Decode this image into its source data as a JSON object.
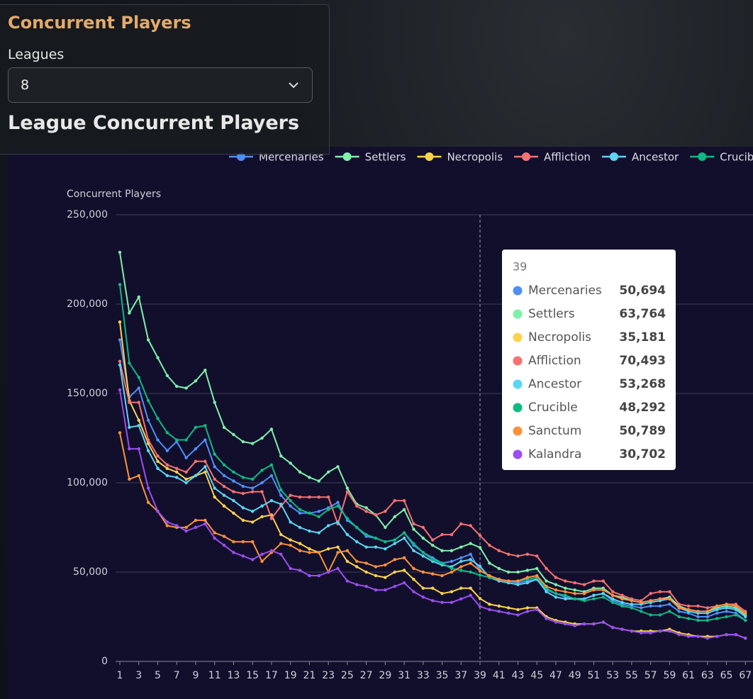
{
  "header": {
    "title": "Concurrent Players",
    "filter_label": "Leagues",
    "filter_value": "8",
    "section_title": "League Concurrent Players"
  },
  "chart_data": {
    "type": "line",
    "y_label": "Concurrent Players",
    "x": [
      1,
      2,
      3,
      4,
      5,
      6,
      7,
      8,
      9,
      10,
      11,
      12,
      13,
      14,
      15,
      16,
      17,
      18,
      19,
      20,
      21,
      22,
      23,
      24,
      25,
      26,
      27,
      28,
      29,
      30,
      31,
      32,
      33,
      34,
      35,
      36,
      37,
      38,
      39,
      40,
      41,
      42,
      43,
      44,
      45,
      46,
      47,
      48,
      49,
      50,
      51,
      52,
      53,
      54,
      55,
      56,
      57,
      58,
      59,
      60,
      61,
      62,
      63,
      64,
      65,
      66,
      67
    ],
    "xlim": [
      0.55,
      67.8
    ],
    "xticks": [
      1,
      3,
      5,
      7,
      9,
      11,
      13,
      15,
      17,
      19,
      21,
      23,
      25,
      27,
      29,
      31,
      33,
      35,
      37,
      39,
      41,
      43,
      45,
      47,
      49,
      51,
      53,
      55,
      57,
      59,
      61,
      63,
      65,
      67
    ],
    "ylim": [
      0,
      250000
    ],
    "yticks": [
      0,
      {
        "value": 50000,
        "label": "50,000"
      },
      {
        "value": 100000,
        "label": "100,000"
      },
      {
        "value": 150000,
        "label": "150,000"
      },
      {
        "value": 200000,
        "label": "200,000"
      },
      {
        "value": 250000,
        "label": "250,000"
      }
    ],
    "grid": true,
    "legend": "top-right",
    "series": [
      {
        "name": "Mercenaries",
        "color": "#4f8ff7",
        "values": [
          180000,
          148000,
          153000,
          135000,
          124000,
          118000,
          123000,
          114000,
          119000,
          124000,
          109000,
          104000,
          101000,
          98000,
          97000,
          100000,
          104000,
          93000,
          87000,
          83000,
          83000,
          84000,
          86000,
          89000,
          79000,
          75000,
          70000,
          69000,
          67000,
          68000,
          72000,
          65000,
          61000,
          58000,
          55000,
          56000,
          58000,
          60000,
          50694,
          48000,
          46000,
          45000,
          44000,
          45000,
          46000,
          40000,
          38000,
          36000,
          35000,
          35000,
          37000,
          38000,
          34000,
          32000,
          31000,
          30000,
          31000,
          31000,
          32000,
          28000,
          27000,
          25000,
          25000,
          27000,
          28000,
          27000,
          23000
        ]
      },
      {
        "name": "Settlers",
        "color": "#7ef0a8",
        "values": [
          229000,
          195000,
          204000,
          180000,
          170000,
          160000,
          154000,
          153000,
          157000,
          163000,
          145000,
          131000,
          127000,
          123000,
          122000,
          125000,
          130000,
          115000,
          111000,
          106000,
          103000,
          101000,
          106000,
          109000,
          97000,
          88000,
          86000,
          82000,
          75000,
          81000,
          85000,
          74000,
          69000,
          65000,
          62000,
          62000,
          64000,
          66000,
          63764,
          55000,
          52000,
          50000,
          50000,
          51000,
          52000,
          45000,
          43000,
          41000,
          40000,
          39000,
          41000,
          41000,
          37000,
          36000,
          34000,
          33000,
          34000,
          35000,
          36000,
          31000,
          29000,
          28000,
          28000,
          30000,
          31000,
          30000,
          26000
        ]
      },
      {
        "name": "Necropolis",
        "color": "#fcd34d",
        "values": [
          190000,
          146000,
          135000,
          122000,
          112000,
          108000,
          106000,
          102000,
          104000,
          106000,
          92000,
          87000,
          83000,
          79000,
          78000,
          81000,
          82000,
          71000,
          68000,
          66000,
          63000,
          61000,
          63000,
          64000,
          56000,
          53000,
          50000,
          48000,
          47000,
          50000,
          51000,
          46000,
          41000,
          41000,
          38000,
          39000,
          41000,
          41000,
          35181,
          32000,
          31000,
          30000,
          29000,
          30000,
          30000,
          25000,
          23000,
          22000,
          21000,
          21000,
          21000,
          22000,
          19000,
          18000,
          17000,
          17000,
          17000,
          17000,
          18000,
          16000,
          15000,
          14000,
          14000,
          14000,
          15000,
          15000,
          13000
        ]
      },
      {
        "name": "Affliction",
        "color": "#f87171",
        "values": [
          168000,
          145000,
          145000,
          124000,
          115000,
          110000,
          108000,
          106000,
          112000,
          112000,
          102000,
          98000,
          95000,
          94000,
          95000,
          95000,
          80000,
          87000,
          93000,
          92000,
          92000,
          92000,
          92000,
          77000,
          95000,
          87000,
          84000,
          82000,
          84000,
          90000,
          90000,
          77000,
          75000,
          68000,
          71000,
          71000,
          77000,
          76000,
          70493,
          65000,
          62000,
          60000,
          59000,
          60000,
          59000,
          52000,
          47000,
          45000,
          44000,
          43000,
          45000,
          45000,
          39000,
          37000,
          35000,
          34000,
          38000,
          39000,
          39000,
          32000,
          31000,
          31000,
          30000,
          31000,
          32000,
          32000,
          28000
        ]
      },
      {
        "name": "Ancestor",
        "color": "#5ad6f2",
        "values": [
          166000,
          131000,
          132000,
          118000,
          108000,
          104000,
          103000,
          100000,
          104000,
          109000,
          97000,
          93000,
          90000,
          86000,
          84000,
          87000,
          90000,
          88000,
          78000,
          75000,
          73000,
          72000,
          76000,
          78000,
          71000,
          67000,
          64000,
          64000,
          63000,
          66000,
          69000,
          62000,
          59000,
          56000,
          54000,
          53000,
          56000,
          57000,
          53268,
          47000,
          45000,
          44000,
          43000,
          44000,
          46000,
          39000,
          36000,
          35000,
          35000,
          35000,
          37000,
          38000,
          35000,
          33000,
          32000,
          32000,
          33000,
          34000,
          35000,
          30000,
          28000,
          27000,
          27000,
          29000,
          30000,
          29000,
          25000
        ]
      },
      {
        "name": "Crucible",
        "color": "#10b981",
        "values": [
          211000,
          167000,
          159000,
          146000,
          136000,
          128000,
          124000,
          124000,
          131000,
          132000,
          116000,
          110000,
          106000,
          103000,
          102000,
          107000,
          110000,
          96000,
          90000,
          85000,
          83000,
          81000,
          85000,
          87000,
          80000,
          75000,
          71000,
          69000,
          67000,
          68000,
          72000,
          66000,
          61000,
          57000,
          55000,
          52000,
          51000,
          50000,
          48292,
          47000,
          46000,
          45000,
          45000,
          46000,
          47000,
          41000,
          38000,
          37000,
          35000,
          34000,
          35000,
          36000,
          33000,
          31000,
          30000,
          28000,
          26000,
          26000,
          28000,
          25000,
          24000,
          23000,
          23000,
          24000,
          25000,
          26000,
          23000
        ]
      },
      {
        "name": "Sanctum",
        "color": "#fb923c",
        "values": [
          128000,
          102000,
          104000,
          89000,
          84000,
          76000,
          75000,
          75000,
          79000,
          79000,
          72000,
          70000,
          67000,
          67000,
          67000,
          56000,
          61000,
          66000,
          65000,
          62000,
          61000,
          61000,
          50000,
          61000,
          62000,
          56000,
          55000,
          53000,
          54000,
          57000,
          58000,
          52000,
          50000,
          49000,
          48000,
          50000,
          53000,
          55000,
          50789,
          48000,
          46000,
          45000,
          45000,
          47000,
          48000,
          42000,
          40000,
          39000,
          38000,
          38000,
          40000,
          40000,
          37000,
          35000,
          34000,
          33000,
          34000,
          35000,
          35000,
          30000,
          29000,
          28000,
          28000,
          31000,
          32000,
          31000,
          27000
        ]
      },
      {
        "name": "Kalandra",
        "color": "#9b4ff0",
        "values": [
          152000,
          119000,
          119000,
          97000,
          84000,
          78000,
          76000,
          73000,
          75000,
          77000,
          69000,
          65000,
          61000,
          59000,
          57000,
          60000,
          62000,
          60000,
          52000,
          51000,
          48000,
          48000,
          50000,
          52000,
          45000,
          43000,
          42000,
          40000,
          40000,
          42000,
          44000,
          39000,
          36000,
          34000,
          33000,
          33000,
          35000,
          37000,
          30702,
          29000,
          28000,
          27000,
          26000,
          28000,
          29000,
          24000,
          22000,
          21000,
          20000,
          21000,
          21000,
          22000,
          19000,
          18000,
          17000,
          16000,
          16000,
          17000,
          17000,
          15000,
          14000,
          14000,
          13000,
          14000,
          15000,
          15000,
          13000
        ]
      }
    ],
    "tooltip": {
      "x": 39,
      "value_labels": [
        "50,694",
        "63,764",
        "35,181",
        "70,493",
        "53,268",
        "48,292",
        "50,789",
        "30,702"
      ]
    }
  }
}
